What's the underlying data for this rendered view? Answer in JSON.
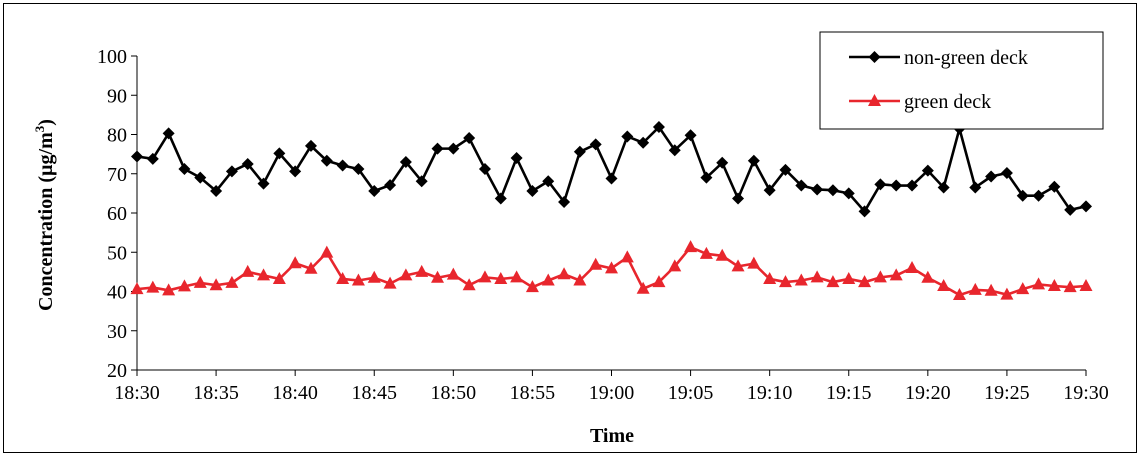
{
  "chart_data": {
    "type": "line",
    "xlabel": "Time",
    "ylabel": "Concentration (µg/m³)",
    "ylabel_parts": {
      "main": "Concentration (µg/m",
      "sup": "3",
      "close": ")"
    },
    "ylim": [
      20,
      100
    ],
    "yticks": [
      20,
      30,
      40,
      50,
      60,
      70,
      80,
      90,
      100
    ],
    "xticks": [
      "18:30",
      "18:35",
      "18:40",
      "18:45",
      "18:50",
      "18:55",
      "19:00",
      "19:05",
      "19:10",
      "19:15",
      "19:20",
      "19:25",
      "19:30"
    ],
    "x_start": "18:30",
    "x_end": "19:30",
    "legend_position": "top-right",
    "grid": false,
    "series": [
      {
        "name": "non-green deck",
        "color": "#000000",
        "marker": "diamond",
        "values": [
          74.4,
          73.8,
          80.3,
          71.2,
          69.0,
          65.6,
          70.6,
          72.5,
          67.5,
          75.2,
          70.6,
          77.1,
          73.3,
          72.1,
          71.2,
          65.6,
          67.1,
          73.0,
          68.1,
          76.4,
          76.4,
          79.1,
          71.2,
          63.7,
          74.0,
          65.6,
          68.1,
          62.8,
          75.6,
          77.5,
          68.8,
          79.5,
          77.9,
          81.9,
          76.0,
          79.8,
          69.0,
          72.8,
          63.7,
          73.3,
          65.8,
          71.0,
          67.0,
          66.0,
          65.8,
          65.0,
          60.4,
          67.3,
          67.0,
          67.0,
          70.8,
          66.5,
          81.5,
          66.5,
          69.3,
          70.2,
          64.4,
          64.4,
          66.7,
          60.8,
          61.7
        ]
      },
      {
        "name": "green deck",
        "color": "#e8262d",
        "marker": "triangle",
        "values": [
          40.6,
          41.0,
          40.3,
          41.3,
          42.2,
          41.6,
          42.2,
          45.0,
          44.1,
          43.2,
          47.2,
          45.8,
          49.9,
          43.2,
          42.8,
          43.5,
          42.0,
          44.1,
          45.0,
          43.5,
          44.3,
          41.6,
          43.6,
          43.2,
          43.6,
          41.1,
          42.8,
          44.4,
          42.8,
          46.8,
          45.9,
          48.7,
          40.7,
          42.4,
          46.4,
          51.3,
          49.6,
          49.1,
          46.4,
          47.1,
          43.2,
          42.4,
          42.8,
          43.6,
          42.4,
          43.2,
          42.4,
          43.6,
          44.1,
          46.0,
          43.5,
          41.4,
          39.1,
          40.4,
          40.2,
          39.2,
          40.6,
          41.8,
          41.4,
          41.1,
          41.4
        ]
      }
    ]
  }
}
